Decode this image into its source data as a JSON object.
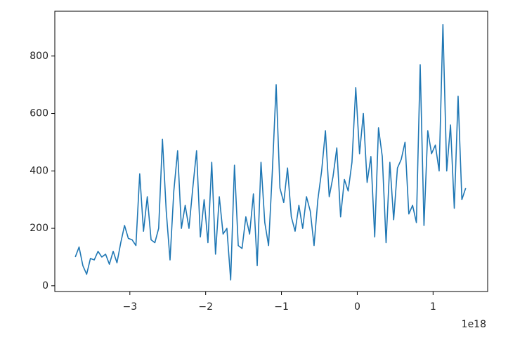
{
  "chart_data": {
    "type": "line",
    "color": "#1f77b4",
    "grid": false,
    "x_offset_label": "1e18",
    "xlim": [
      -3.99,
      1.72
    ],
    "xticks": [
      {
        "value": -3,
        "label": "−3"
      },
      {
        "value": -2,
        "label": "−2"
      },
      {
        "value": -1,
        "label": "−1"
      },
      0,
      1
    ],
    "ylim": [
      -20,
      956
    ],
    "yticks": [
      0,
      200,
      400,
      600,
      800
    ],
    "x": [
      -3.72,
      -3.67,
      -3.62,
      -3.57,
      -3.52,
      -3.47,
      -3.42,
      -3.37,
      -3.32,
      -3.27,
      -3.22,
      -3.17,
      -3.12,
      -3.07,
      -3.02,
      -2.97,
      -2.92,
      -2.87,
      -2.82,
      -2.77,
      -2.72,
      -2.67,
      -2.62,
      -2.57,
      -2.52,
      -2.47,
      -2.42,
      -2.37,
      -2.32,
      -2.27,
      -2.22,
      -2.17,
      -2.12,
      -2.07,
      -2.02,
      -1.97,
      -1.92,
      -1.87,
      -1.82,
      -1.77,
      -1.72,
      -1.67,
      -1.62,
      -1.57,
      -1.52,
      -1.47,
      -1.42,
      -1.37,
      -1.32,
      -1.27,
      -1.22,
      -1.17,
      -1.12,
      -1.07,
      -1.02,
      -0.97,
      -0.92,
      -0.87,
      -0.82,
      -0.77,
      -0.72,
      -0.67,
      -0.62,
      -0.57,
      -0.52,
      -0.47,
      -0.42,
      -0.37,
      -0.32,
      -0.27,
      -0.22,
      -0.17,
      -0.12,
      -0.07,
      -0.02,
      0.03,
      0.08,
      0.13,
      0.18,
      0.23,
      0.28,
      0.33,
      0.38,
      0.43,
      0.48,
      0.53,
      0.58,
      0.63,
      0.68,
      0.73,
      0.78,
      0.83,
      0.88,
      0.93,
      0.98,
      1.03,
      1.08,
      1.13,
      1.18,
      1.23,
      1.28,
      1.33,
      1.38,
      1.43
    ],
    "values": [
      100,
      135,
      70,
      40,
      95,
      90,
      120,
      100,
      110,
      75,
      120,
      80,
      150,
      210,
      165,
      160,
      140,
      390,
      190,
      310,
      160,
      150,
      200,
      510,
      260,
      90,
      330,
      470,
      200,
      280,
      200,
      340,
      470,
      170,
      300,
      150,
      430,
      110,
      310,
      180,
      200,
      20,
      420,
      140,
      130,
      240,
      180,
      320,
      70,
      430,
      220,
      140,
      400,
      700,
      340,
      290,
      410,
      240,
      190,
      280,
      200,
      310,
      260,
      140,
      300,
      400,
      540,
      310,
      380,
      480,
      240,
      370,
      330,
      430,
      690,
      460,
      600,
      360,
      450,
      170,
      550,
      450,
      150,
      430,
      230,
      410,
      440,
      500,
      250,
      280,
      220,
      770,
      210,
      540,
      460,
      490,
      400,
      910,
      400,
      560,
      270,
      660,
      300,
      340
    ]
  }
}
